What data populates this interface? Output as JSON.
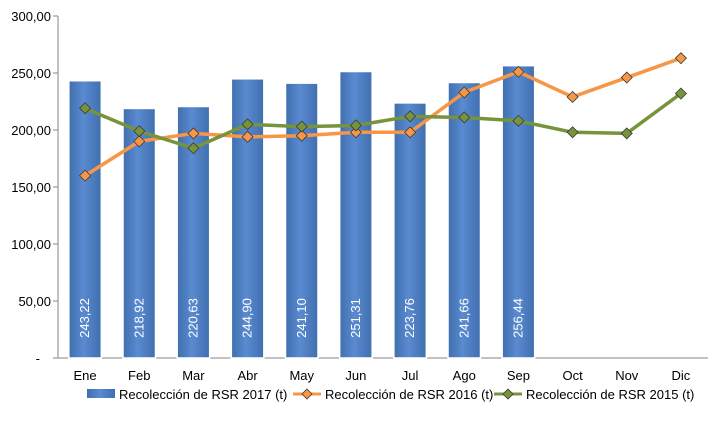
{
  "chart_data": {
    "type": "bar",
    "categories": [
      "Ene",
      "Feb",
      "Mar",
      "Abr",
      "May",
      "Jun",
      "Jul",
      "Ago",
      "Sep",
      "Oct",
      "Nov",
      "Dic"
    ],
    "y_ticks": [
      "-",
      "50,00",
      "100,00",
      "150,00",
      "200,00",
      "250,00",
      "300,00"
    ],
    "ylim": [
      0,
      300
    ],
    "grid": false,
    "legend_position": "bottom",
    "series": [
      {
        "name": "Recolección de RSR 2017 (t)",
        "type": "bar",
        "color": "#4f81bd",
        "values": [
          243.22,
          218.92,
          220.63,
          244.9,
          241.1,
          251.31,
          223.76,
          241.66,
          256.44,
          null,
          null,
          null
        ],
        "data_labels": [
          "243,22",
          "218,92",
          "220,63",
          "244,90",
          "241,10",
          "251,31",
          "223,76",
          "241,66",
          "256,44"
        ]
      },
      {
        "name": "Recolección de RSR 2016 (t)",
        "type": "line",
        "marker": "diamond",
        "color": "#f79646",
        "values": [
          160,
          190,
          197,
          194,
          195,
          198,
          198,
          233,
          251,
          229,
          246,
          263
        ]
      },
      {
        "name": "Recolección de RSR 2015 (t)",
        "type": "line",
        "marker": "diamond",
        "color": "#77933c",
        "values": [
          219,
          199,
          184,
          205,
          203,
          204,
          212,
          211,
          208,
          198,
          197,
          232
        ]
      }
    ]
  }
}
